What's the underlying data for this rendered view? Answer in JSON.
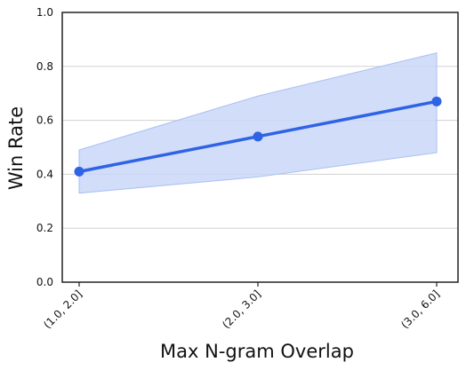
{
  "chart_data": {
    "type": "line",
    "title": "",
    "xlabel": "Max N-gram Overlap",
    "ylabel": "Win Rate",
    "categories": [
      "(1.0, 2.0]",
      "(2.0, 3.0]",
      "(3.0, 6.0]"
    ],
    "series": [
      {
        "values": [
          0.41,
          0.54,
          0.67
        ],
        "lower": [
          0.33,
          0.39,
          0.48
        ],
        "upper": [
          0.49,
          0.69,
          0.85
        ]
      }
    ],
    "ylim": [
      0.0,
      1.0
    ],
    "yticks": [
      "0.0",
      "0.2",
      "0.4",
      "0.6",
      "0.8",
      "1.0"
    ],
    "grid": "horizontal",
    "colors": {
      "line": "#2f63e6",
      "band": "#c9d7f8",
      "band_edge": "#a9bff3",
      "grid": "#d0d0d0"
    }
  }
}
